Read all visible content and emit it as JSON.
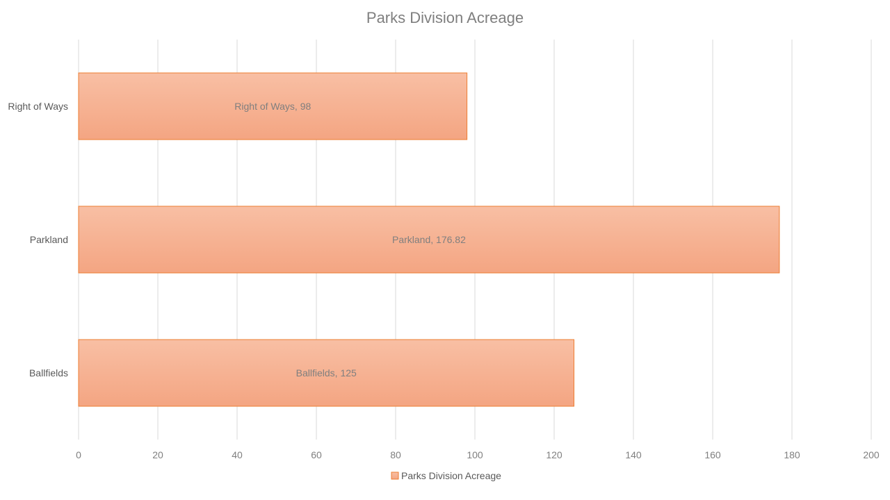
{
  "chart_data": {
    "type": "bar",
    "orientation": "horizontal",
    "title": "Parks Division Acreage",
    "categories": [
      "Right of Ways",
      "Parkland",
      "Ballfields"
    ],
    "series": [
      {
        "name": "Parks Division Acreage",
        "values": [
          98,
          176.82,
          125
        ],
        "data_labels": [
          "Right of Ways, 98",
          "Parkland, 176.82",
          "Ballfields, 125"
        ]
      }
    ],
    "xlabel": "",
    "ylabel": "",
    "xlim": [
      0,
      200
    ],
    "x_ticks": [
      0,
      20,
      40,
      60,
      80,
      100,
      120,
      140,
      160,
      180,
      200
    ],
    "grid": "vertical",
    "legend": "bottom",
    "colors": {
      "bar_fill_top": "#f8bfa4",
      "bar_fill_bottom": "#f4a582",
      "bar_stroke": "#ed7d31"
    }
  }
}
